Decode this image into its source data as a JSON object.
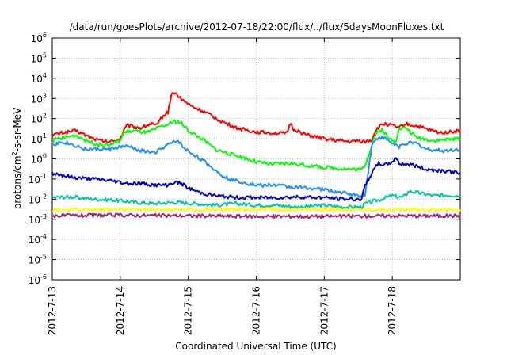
{
  "chart_data": {
    "type": "line",
    "title": "/data/run/goesPlots/archive/2012-07-18/22:00/flux/../flux/5daysMoonFluxes.txt",
    "xlabel": "Coordinated Universal Time (UTC)",
    "ylabel": {
      "pre": "protons/cm",
      "sup": "2",
      "post": "-s-sr-MeV"
    },
    "x_range_days": [
      0,
      6.0
    ],
    "ylim": [
      1e-06,
      1000000.0
    ],
    "yscale": "log",
    "grid": true,
    "x_ticks": [
      {
        "label": "2012-7-13",
        "day": 0
      },
      {
        "label": "2012-7-14",
        "day": 1
      },
      {
        "label": "2012-7-15",
        "day": 2
      },
      {
        "label": "2012-7-16",
        "day": 3
      },
      {
        "label": "2012-7-17",
        "day": 4
      },
      {
        "label": "2012-7-18",
        "day": 5
      }
    ],
    "y_ticks": [
      {
        "base": "10",
        "exp": "6",
        "value": 1000000.0
      },
      {
        "base": "10",
        "exp": "5",
        "value": 100000.0
      },
      {
        "base": "10",
        "exp": "4",
        "value": 10000.0
      },
      {
        "base": "10",
        "exp": "3",
        "value": 1000.0
      },
      {
        "base": "10",
        "exp": "2",
        "value": 100.0
      },
      {
        "base": "10",
        "exp": "1",
        "value": 10.0
      },
      {
        "base": "10",
        "exp": "0",
        "value": 1.0
      },
      {
        "base": "10",
        "exp": "-1",
        "value": 0.1
      },
      {
        "base": "10",
        "exp": "-2",
        "value": 0.01
      },
      {
        "base": "10",
        "exp": "-3",
        "value": 0.001
      },
      {
        "base": "10",
        "exp": "-4",
        "value": 0.0001
      },
      {
        "base": "10",
        "exp": "-5",
        "value": 1e-05
      },
      {
        "base": "10",
        "exp": "-6",
        "value": 1e-06
      }
    ],
    "series": [
      {
        "color": "#ff0000",
        "points": [
          [
            0,
            15
          ],
          [
            0.15,
            20
          ],
          [
            0.35,
            25
          ],
          [
            0.55,
            12
          ],
          [
            0.7,
            8
          ],
          [
            0.85,
            7
          ],
          [
            1.0,
            10
          ],
          [
            1.05,
            25
          ],
          [
            1.1,
            45
          ],
          [
            1.3,
            35
          ],
          [
            1.45,
            55
          ],
          [
            1.55,
            45
          ],
          [
            1.6,
            110
          ],
          [
            1.7,
            210
          ],
          [
            1.75,
            1500
          ],
          [
            1.8,
            2000
          ],
          [
            1.9,
            900
          ],
          [
            1.95,
            700
          ],
          [
            2.05,
            400
          ],
          [
            2.2,
            250
          ],
          [
            2.5,
            70
          ],
          [
            2.7,
            35
          ],
          [
            2.9,
            25
          ],
          [
            3.0,
            22
          ],
          [
            3.2,
            20
          ],
          [
            3.45,
            18
          ],
          [
            3.5,
            60
          ],
          [
            3.55,
            30
          ],
          [
            3.75,
            15
          ],
          [
            4.0,
            10
          ],
          [
            4.2,
            8
          ],
          [
            4.4,
            7
          ],
          [
            4.5,
            8
          ],
          [
            4.6,
            7
          ],
          [
            4.7,
            9
          ],
          [
            4.75,
            25
          ],
          [
            4.85,
            50
          ],
          [
            4.9,
            55
          ],
          [
            5.0,
            45
          ],
          [
            5.1,
            35
          ],
          [
            5.2,
            55
          ],
          [
            5.25,
            50
          ],
          [
            5.4,
            40
          ],
          [
            5.5,
            30
          ],
          [
            5.7,
            20
          ],
          [
            5.85,
            22
          ],
          [
            6.0,
            25
          ]
        ]
      },
      {
        "color": "#00ff00",
        "points": [
          [
            0,
            8
          ],
          [
            0.2,
            12
          ],
          [
            0.35,
            15
          ],
          [
            0.5,
            8
          ],
          [
            0.7,
            5
          ],
          [
            0.85,
            5
          ],
          [
            1.0,
            8
          ],
          [
            1.05,
            20
          ],
          [
            1.2,
            25
          ],
          [
            1.4,
            20
          ],
          [
            1.6,
            40
          ],
          [
            1.7,
            50
          ],
          [
            1.8,
            75
          ],
          [
            1.9,
            60
          ],
          [
            2.0,
            25
          ],
          [
            2.2,
            10
          ],
          [
            2.4,
            3
          ],
          [
            2.6,
            1.8
          ],
          [
            2.8,
            1.2
          ],
          [
            3.0,
            0.7
          ],
          [
            3.2,
            0.55
          ],
          [
            3.5,
            0.6
          ],
          [
            3.8,
            0.45
          ],
          [
            4.0,
            0.38
          ],
          [
            4.3,
            0.32
          ],
          [
            4.55,
            0.3
          ],
          [
            4.6,
            0.5
          ],
          [
            4.75,
            15
          ],
          [
            4.85,
            30
          ],
          [
            4.95,
            10
          ],
          [
            5.05,
            8
          ],
          [
            5.1,
            30
          ],
          [
            5.2,
            35
          ],
          [
            5.35,
            12
          ],
          [
            5.6,
            8
          ],
          [
            5.8,
            9
          ],
          [
            6.0,
            10
          ]
        ]
      },
      {
        "color": "#1e90ff",
        "points": [
          [
            0,
            5
          ],
          [
            0.15,
            7
          ],
          [
            0.3,
            5
          ],
          [
            0.5,
            3
          ],
          [
            0.7,
            3
          ],
          [
            0.85,
            3
          ],
          [
            1.0,
            4
          ],
          [
            1.15,
            4
          ],
          [
            1.3,
            2.5
          ],
          [
            1.5,
            2
          ],
          [
            1.7,
            5
          ],
          [
            1.85,
            8
          ],
          [
            1.95,
            3
          ],
          [
            2.1,
            1.5
          ],
          [
            2.3,
            0.5
          ],
          [
            2.45,
            0.2
          ],
          [
            2.6,
            0.1
          ],
          [
            2.8,
            0.07
          ],
          [
            3.0,
            0.05
          ],
          [
            3.3,
            0.05
          ],
          [
            3.5,
            0.04
          ],
          [
            3.8,
            0.035
          ],
          [
            4.0,
            0.03
          ],
          [
            4.3,
            0.02
          ],
          [
            4.5,
            0.015
          ],
          [
            4.6,
            0.015
          ],
          [
            4.65,
            0.3
          ],
          [
            4.7,
            5
          ],
          [
            4.8,
            12
          ],
          [
            4.9,
            10
          ],
          [
            5.0,
            6
          ],
          [
            5.1,
            4
          ],
          [
            5.2,
            6
          ],
          [
            5.35,
            6
          ],
          [
            5.5,
            3
          ],
          [
            5.75,
            2.5
          ],
          [
            6.0,
            3
          ]
        ]
      },
      {
        "color": "#0000cc",
        "points": [
          [
            0,
            0.2
          ],
          [
            0.3,
            0.12
          ],
          [
            0.6,
            0.1
          ],
          [
            0.9,
            0.08
          ],
          [
            1.1,
            0.06
          ],
          [
            1.3,
            0.06
          ],
          [
            1.5,
            0.05
          ],
          [
            1.7,
            0.05
          ],
          [
            1.8,
            0.07
          ],
          [
            1.9,
            0.06
          ],
          [
            2.0,
            0.035
          ],
          [
            2.2,
            0.02
          ],
          [
            2.4,
            0.015
          ],
          [
            2.7,
            0.012
          ],
          [
            3.0,
            0.012
          ],
          [
            3.3,
            0.012
          ],
          [
            3.6,
            0.013
          ],
          [
            4.0,
            0.012
          ],
          [
            4.3,
            0.01
          ],
          [
            4.55,
            0.01
          ],
          [
            4.6,
            0.05
          ],
          [
            4.7,
            0.2
          ],
          [
            4.8,
            0.6
          ],
          [
            4.9,
            0.5
          ],
          [
            5.0,
            0.7
          ],
          [
            5.05,
            1.2
          ],
          [
            5.1,
            0.6
          ],
          [
            5.3,
            0.5
          ],
          [
            5.5,
            0.3
          ],
          [
            5.8,
            0.25
          ],
          [
            6.0,
            0.2
          ]
        ]
      },
      {
        "color": "#00c8a0",
        "points": [
          [
            0,
            0.012
          ],
          [
            0.3,
            0.013
          ],
          [
            0.6,
            0.01
          ],
          [
            0.9,
            0.009
          ],
          [
            1.2,
            0.007
          ],
          [
            1.5,
            0.006
          ],
          [
            1.8,
            0.007
          ],
          [
            2.1,
            0.006
          ],
          [
            2.4,
            0.005
          ],
          [
            2.7,
            0.006
          ],
          [
            3.0,
            0.005
          ],
          [
            3.3,
            0.005
          ],
          [
            3.6,
            0.004
          ],
          [
            4.0,
            0.005
          ],
          [
            4.3,
            0.004
          ],
          [
            4.55,
            0.004
          ],
          [
            4.6,
            0.006
          ],
          [
            4.8,
            0.009
          ],
          [
            5.0,
            0.015
          ],
          [
            5.15,
            0.012
          ],
          [
            5.25,
            0.025
          ],
          [
            5.4,
            0.02
          ],
          [
            5.6,
            0.015
          ],
          [
            5.8,
            0.016
          ],
          [
            6.0,
            0.015
          ]
        ]
      },
      {
        "color": "#ffff00",
        "points": [
          [
            0,
            0.003
          ],
          [
            1.0,
            0.003
          ],
          [
            2.0,
            0.003
          ],
          [
            3.0,
            0.003
          ],
          [
            4.0,
            0.003
          ],
          [
            5.0,
            0.003
          ],
          [
            6.0,
            0.003
          ]
        ]
      },
      {
        "color": "#9e2a6e",
        "points": [
          [
            0,
            0.0015
          ],
          [
            1.0,
            0.0016
          ],
          [
            2.0,
            0.0015
          ],
          [
            3.0,
            0.0014
          ],
          [
            4.0,
            0.0014
          ],
          [
            5.0,
            0.0015
          ],
          [
            6.0,
            0.0015
          ]
        ]
      }
    ]
  }
}
